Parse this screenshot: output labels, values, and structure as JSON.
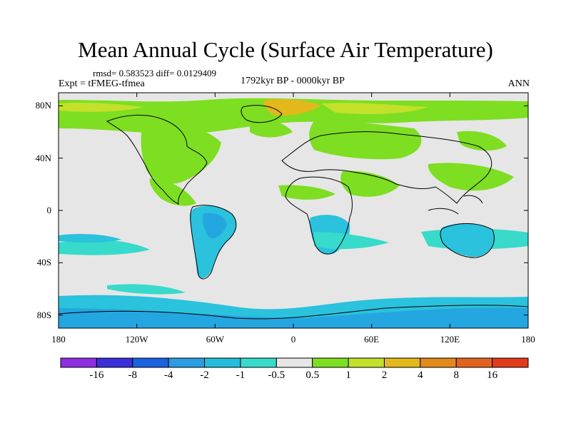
{
  "title": "Mean Annual Cycle (Surface Air Temperature)",
  "stats": "rmsd= 0.583523  diff= 0.0129409",
  "experiment": "Expt = tFMEG-tfmea",
  "period": "1792kyr BP - 0000kyr BP",
  "season": "ANN",
  "map": {
    "projection": "cylindrical equidistant",
    "lon_range": [
      -180,
      180
    ],
    "lat_range": [
      -90,
      90
    ],
    "lat_ticks": [
      {
        "value": 80,
        "label": "80N"
      },
      {
        "value": 40,
        "label": "40N"
      },
      {
        "value": 0,
        "label": "0"
      },
      {
        "value": -40,
        "label": "40S"
      },
      {
        "value": -80,
        "label": "80S"
      }
    ],
    "lon_ticks": [
      {
        "value": -180,
        "label": "180"
      },
      {
        "value": -120,
        "label": "120W"
      },
      {
        "value": -60,
        "label": "60W"
      },
      {
        "value": 0,
        "label": "0"
      },
      {
        "value": 60,
        "label": "60E"
      },
      {
        "value": 120,
        "label": "120E"
      },
      {
        "value": 180,
        "label": "180"
      }
    ]
  },
  "colorbar": {
    "colors": [
      "#8e2ee3",
      "#3a2fd9",
      "#1a62e0",
      "#2a9de3",
      "#24bedc",
      "#37dacb",
      "#e6e6e6",
      "#7ede21",
      "#c3e02b",
      "#e2b81b",
      "#e28a1c",
      "#e1621e",
      "#e03b1a"
    ],
    "labels": [
      "-16",
      "-8",
      "-4",
      "-2",
      "-1",
      "-0.5",
      "0.5",
      "1",
      "2",
      "4",
      "8",
      "16"
    ]
  },
  "colors": {
    "background_field": "#e6e6e6",
    "coast": "#000000"
  }
}
